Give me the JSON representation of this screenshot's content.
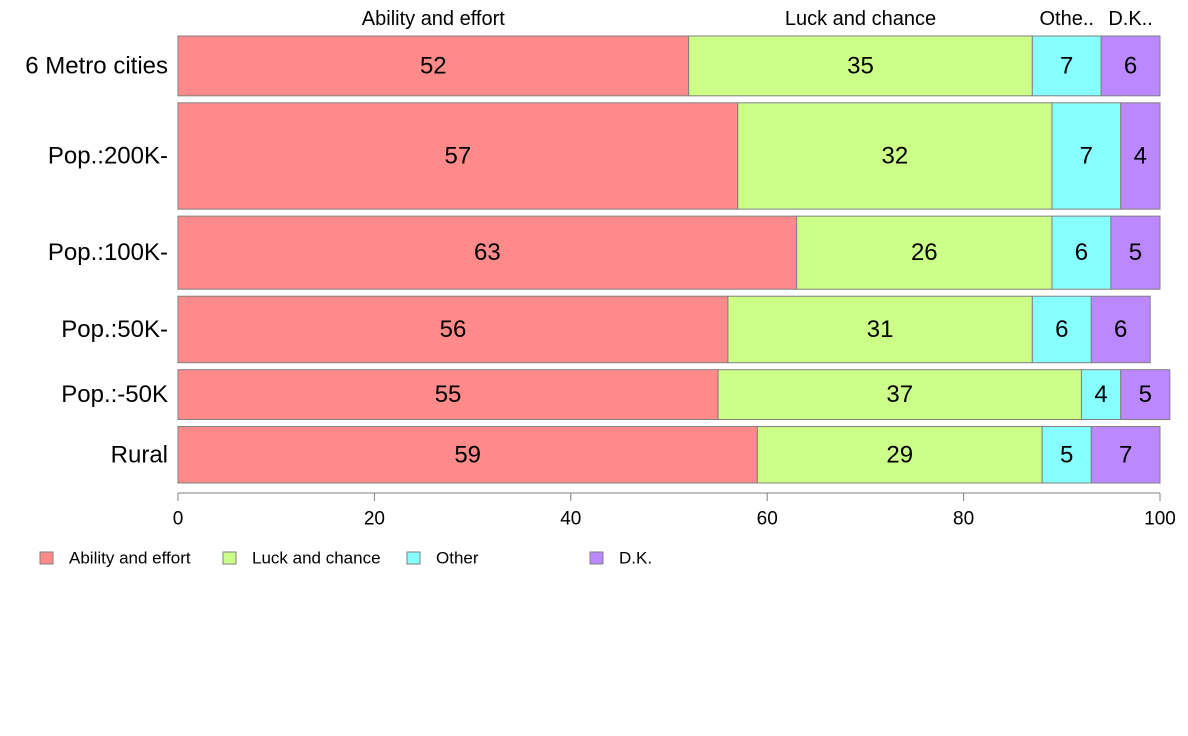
{
  "chart_data": {
    "type": "bar",
    "orientation": "horizontal",
    "stacked": true,
    "categories": [
      "6 Metro cities",
      "Pop.:200K-",
      "Pop.:100K-",
      "Pop.:50K-",
      "Pop.:-50K",
      "Rural"
    ],
    "category_weights": [
      0.9,
      1.6,
      1.1,
      1.0,
      0.75,
      0.85
    ],
    "series": [
      {
        "name": "Ability and effort",
        "top_label": "Ability and effort",
        "color": "#FF8A8A",
        "values": [
          52,
          57,
          63,
          56,
          55,
          59
        ]
      },
      {
        "name": "Luck and chance",
        "top_label": "Luck and chance",
        "color": "#CCFF88",
        "values": [
          35,
          32,
          26,
          31,
          37,
          29
        ]
      },
      {
        "name": "Other",
        "top_label": "Othe..",
        "color": "#88FFFF",
        "values": [
          7,
          7,
          6,
          6,
          4,
          5
        ]
      },
      {
        "name": "D.K.",
        "top_label": "D.K..",
        "color": "#BB88FF",
        "values": [
          6,
          4,
          5,
          6,
          5,
          7
        ]
      }
    ],
    "xlim": [
      0,
      100
    ],
    "xticks": [
      "0",
      "20",
      "40",
      "60",
      "80",
      "100"
    ],
    "legend": "bottom-left",
    "grid": false
  }
}
